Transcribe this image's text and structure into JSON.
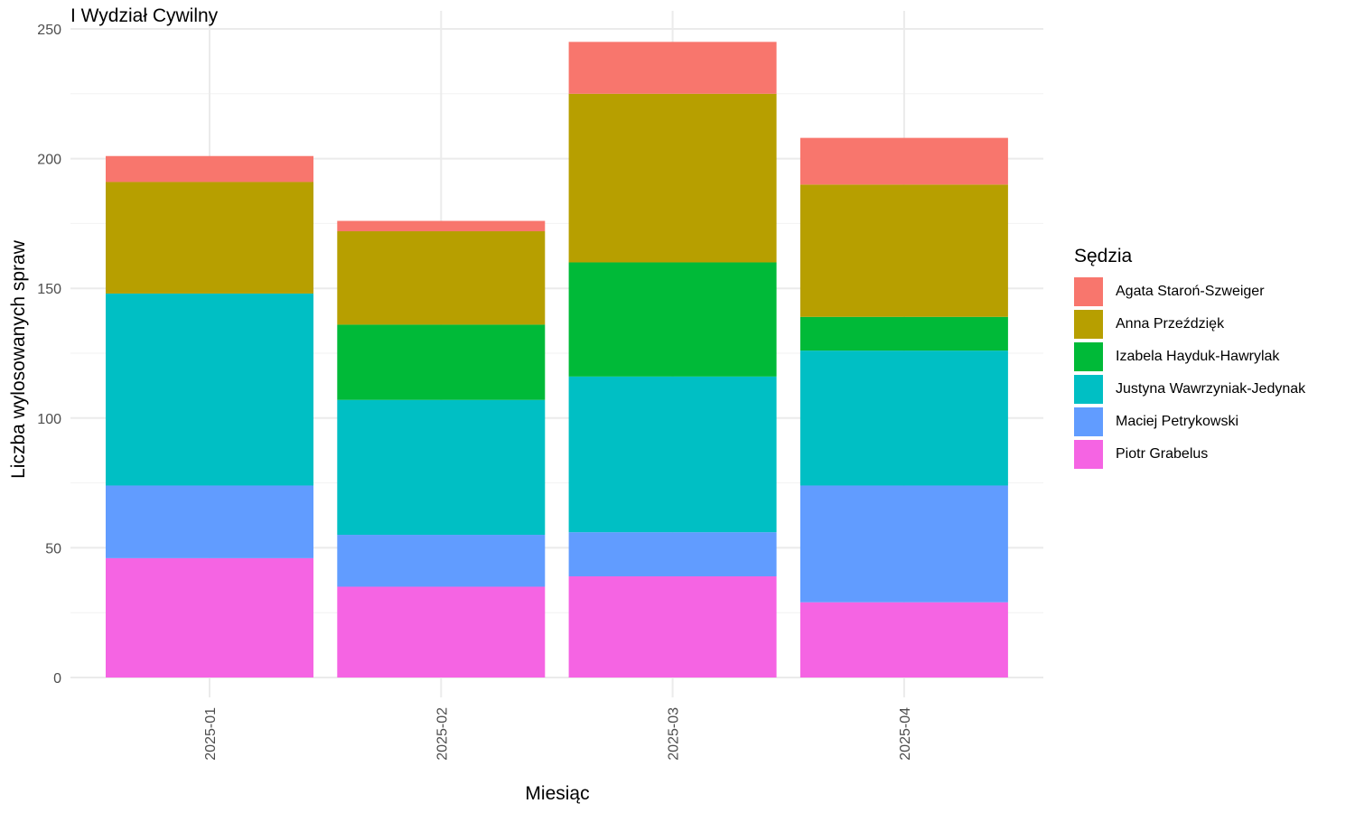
{
  "chart_data": {
    "type": "bar",
    "stacked": true,
    "title": "I Wydział Cywilny",
    "xlabel": "Miesiąc",
    "ylabel": "Liczba wylosowanych spraw",
    "ylim": [
      0,
      250
    ],
    "yticks": [
      0,
      50,
      100,
      150,
      200,
      250
    ],
    "grid": true,
    "legend_title": "Sędzia",
    "legend_position": "right",
    "categories": [
      "2025-01",
      "2025-02",
      "2025-03",
      "2025-04"
    ],
    "series": [
      {
        "name": "Agata Staroń-Szweiger",
        "color": "#F8766D",
        "values": [
          10,
          4,
          20,
          18
        ]
      },
      {
        "name": "Anna Przeździęk",
        "color": "#B79F00",
        "values": [
          43,
          36,
          65,
          51
        ]
      },
      {
        "name": "Izabela Hayduk-Hawrylak",
        "color": "#00BA38",
        "values": [
          0,
          29,
          44,
          13
        ]
      },
      {
        "name": "Justyna Wawrzyniak-Jedynak",
        "color": "#00BFC4",
        "values": [
          74,
          52,
          60,
          52
        ]
      },
      {
        "name": "Maciej Petrykowski",
        "color": "#619CFF",
        "values": [
          28,
          20,
          17,
          45
        ]
      },
      {
        "name": "Piotr Grabelus",
        "color": "#F564E3",
        "values": [
          46,
          35,
          39,
          29
        ]
      }
    ]
  }
}
